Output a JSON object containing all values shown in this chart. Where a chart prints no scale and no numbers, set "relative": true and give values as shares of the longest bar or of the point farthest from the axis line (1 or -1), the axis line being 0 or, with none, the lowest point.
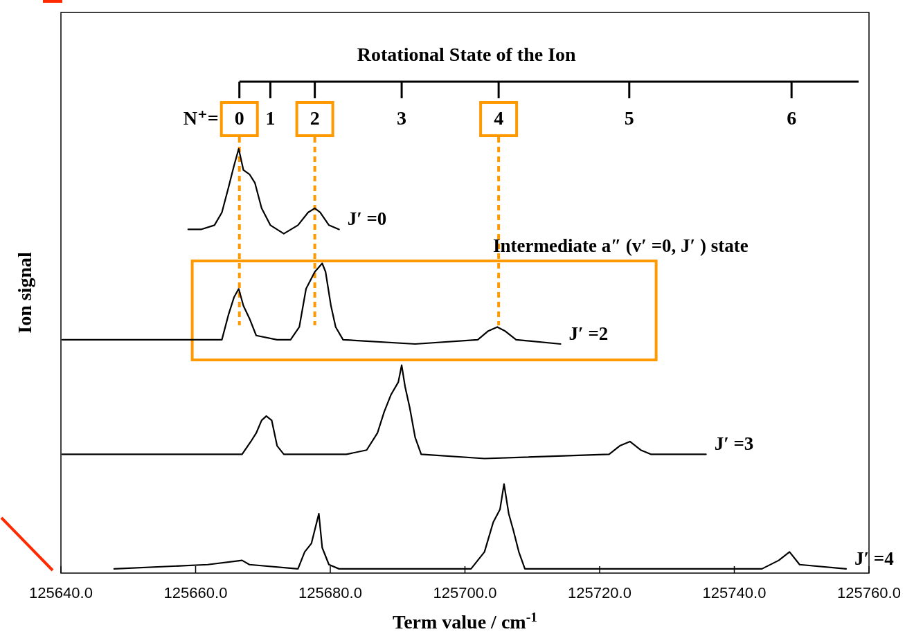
{
  "chart_data": {
    "type": "line",
    "relative": true,
    "xlabel": "Term value / cm$^{-1}$",
    "ylabel": "Ion signal",
    "xlim": [
      125640,
      125760
    ],
    "xticks": [
      {
        "value": 125640,
        "label": "125640.0"
      },
      {
        "value": 125660,
        "label": "125660.0"
      },
      {
        "value": 125680,
        "label": "125680.0"
      },
      {
        "value": 125700,
        "label": "125700.0"
      },
      {
        "value": 125720,
        "label": "125720.0"
      },
      {
        "value": 125740,
        "label": "125740.0"
      },
      {
        "value": 125760,
        "label": "125760.0"
      }
    ],
    "marker": "none",
    "line_style": "solid",
    "series": [
      {
        "name": "J′ =0",
        "color": "#000000",
        "x": [
          125658.9,
          125660.8,
          125662.8,
          125663.9,
          125664.9,
          125665.7,
          125666.4,
          125667.1,
          125668.0,
          125668.8,
          125669.8,
          125671.1,
          125673.1,
          125675.2,
          125676.7,
          125677.7,
          125678.5,
          125679.8,
          125681.3
        ],
        "values": [
          0.81,
          0.81,
          0.82,
          0.85,
          0.91,
          0.96,
          1.0,
          0.95,
          0.94,
          0.92,
          0.86,
          0.82,
          0.8,
          0.82,
          0.85,
          0.86,
          0.85,
          0.82,
          0.81
        ]
      },
      {
        "name": "J′ =2",
        "color": "#000000",
        "x": [
          125640.2,
          125651.5,
          125659.7,
          125663.9,
          125664.9,
          125665.7,
          125666.4,
          125667.1,
          125668.0,
          125669.0,
          125672.1,
          125674.1,
          125675.4,
          125676.4,
          125677.7,
          125678.8,
          125679.3,
          125680.1,
          125680.8,
          125681.9,
          125692.6,
          125701.9,
          125703.4,
          125704.8,
          125706.0,
          125707.6,
          125714.2
        ],
        "values": [
          0.55,
          0.55,
          0.55,
          0.55,
          0.61,
          0.65,
          0.67,
          0.63,
          0.6,
          0.56,
          0.55,
          0.55,
          0.58,
          0.67,
          0.71,
          0.73,
          0.71,
          0.63,
          0.58,
          0.55,
          0.54,
          0.55,
          0.57,
          0.58,
          0.57,
          0.55,
          0.54
        ]
      },
      {
        "name": "J′ =3",
        "color": "#000000",
        "x": [
          125640.2,
          125661.8,
          125666.9,
          125668.2,
          125669.0,
          125669.8,
          125670.5,
          125671.3,
          125672.1,
          125673.1,
          125682.4,
          125685.4,
          125687.0,
          125688.0,
          125689.0,
          125690.1,
          125690.6,
          125691.1,
          125691.8,
          125692.6,
          125693.5,
          125702.9,
          125721.4,
          125723.0,
          125724.5,
          125726.1,
          125727.6,
          125735.8
        ],
        "values": [
          0.28,
          0.28,
          0.28,
          0.31,
          0.33,
          0.36,
          0.37,
          0.36,
          0.3,
          0.28,
          0.28,
          0.29,
          0.33,
          0.38,
          0.42,
          0.45,
          0.49,
          0.44,
          0.39,
          0.32,
          0.28,
          0.27,
          0.28,
          0.3,
          0.31,
          0.29,
          0.28,
          0.28
        ]
      },
      {
        "name": "J′ =4",
        "color": "#000000",
        "x": [
          125647.9,
          125661.8,
          125666.9,
          125668.0,
          125675.2,
          125676.2,
          125677.2,
          125678.3,
          125678.8,
          125679.8,
          125681.3,
          125700.9,
          125702.9,
          125704.2,
          125705.2,
          125705.8,
          125706.5,
          125707.2,
          125708.0,
          125708.9,
          125744.1,
          125746.6,
          125748.2,
          125749.7,
          125756.6
        ],
        "values": [
          0.01,
          0.02,
          0.03,
          0.02,
          0.01,
          0.05,
          0.07,
          0.14,
          0.06,
          0.02,
          0.01,
          0.01,
          0.05,
          0.12,
          0.15,
          0.21,
          0.14,
          0.1,
          0.05,
          0.01,
          0.01,
          0.03,
          0.05,
          0.02,
          0.01
        ]
      }
    ],
    "ref_lines": [
      {
        "axis": "x",
        "value": 125666.5,
        "color": "#ff9900",
        "line_style": "dashed"
      },
      {
        "axis": "x",
        "value": 125677.7,
        "color": "#ff9900",
        "line_style": "dashed"
      },
      {
        "axis": "x",
        "value": 125705.0,
        "color": "#ff9900",
        "line_style": "dashed"
      }
    ],
    "annotations": [
      "N⁺=",
      "Intermediate a″ (v′ =0, J′ ) state",
      "Rotational State of the Ion",
      {
        "text": "0",
        "x": 125666.5
      },
      {
        "text": "1",
        "x": 125671.1
      },
      {
        "text": "2",
        "x": 125677.7
      },
      {
        "text": "3",
        "x": 125690.6
      },
      {
        "text": "4",
        "x": 125705.0
      },
      {
        "text": "5",
        "x": 125724.4
      },
      {
        "text": "6",
        "x": 125748.5
      }
    ]
  }
}
